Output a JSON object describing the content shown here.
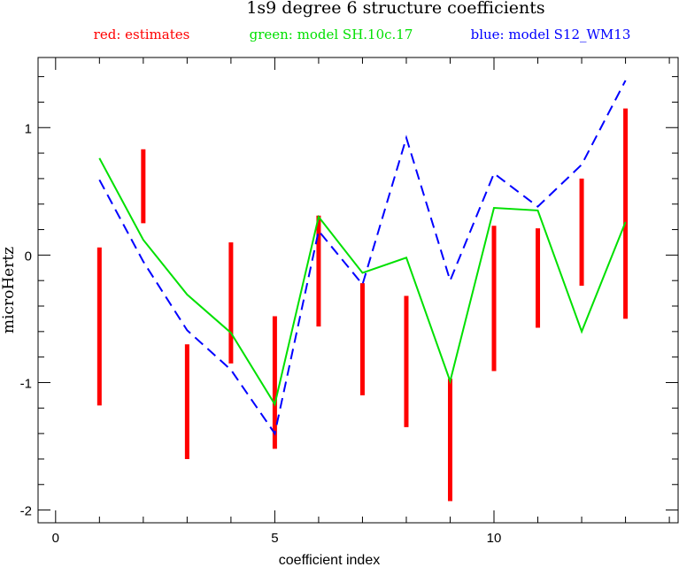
{
  "chart_data": {
    "type": "line",
    "title": "1s9 degree 6 structure coefficients",
    "legend": {
      "placement": "top",
      "entries": [
        {
          "text": "red: estimates",
          "color": "#ff0000"
        },
        {
          "text": "green: model SH.10c.17",
          "color": "#00e000"
        },
        {
          "text": "blue: model S12_WM13",
          "color": "#0000ff"
        }
      ]
    },
    "xlabel": "coefficient index",
    "ylabel": "microHertz",
    "xlim": [
      -0.4,
      14.2
    ],
    "ylim": [
      -2.1,
      1.55
    ],
    "x_ticks": [
      0,
      5,
      10
    ],
    "x_tick_labels": [
      "0",
      "5",
      "10"
    ],
    "y_ticks": [
      -2,
      -1,
      0,
      1
    ],
    "y_tick_labels": [
      "-2",
      "-1",
      "0",
      "1"
    ],
    "grid": false,
    "estimates": {
      "name": "red: estimates",
      "color": "#ff0000",
      "x": [
        1,
        2,
        3,
        4,
        5,
        6,
        7,
        8,
        9,
        10,
        11,
        12,
        13
      ],
      "lower": [
        -1.18,
        0.25,
        -1.6,
        -0.85,
        -1.52,
        -0.56,
        -1.1,
        -1.35,
        -1.93,
        -0.91,
        -0.57,
        -0.24,
        -0.5
      ],
      "upper": [
        0.06,
        0.83,
        -0.7,
        0.1,
        -0.48,
        0.31,
        -0.22,
        -0.32,
        -0.97,
        0.23,
        0.21,
        0.6,
        1.15
      ]
    },
    "series": [
      {
        "name": "green: model SH.10c.17",
        "color": "#00e000",
        "style": "solid",
        "x": [
          1,
          2,
          3,
          4,
          5,
          6,
          7,
          8,
          9,
          10,
          11,
          12,
          13
        ],
        "y": [
          0.76,
          0.12,
          -0.31,
          -0.61,
          -1.17,
          0.3,
          -0.14,
          -0.02,
          -0.99,
          0.37,
          0.35,
          -0.6,
          0.26
        ]
      },
      {
        "name": "blue: model S12_WM13",
        "color": "#0000ff",
        "style": "dashed",
        "x": [
          1,
          2,
          3,
          4,
          5,
          6,
          7,
          8,
          9,
          10,
          11,
          12,
          13
        ],
        "y": [
          0.59,
          -0.05,
          -0.59,
          -0.9,
          -1.4,
          0.19,
          -0.23,
          0.92,
          -0.2,
          0.64,
          0.38,
          0.71,
          1.37
        ]
      }
    ]
  }
}
